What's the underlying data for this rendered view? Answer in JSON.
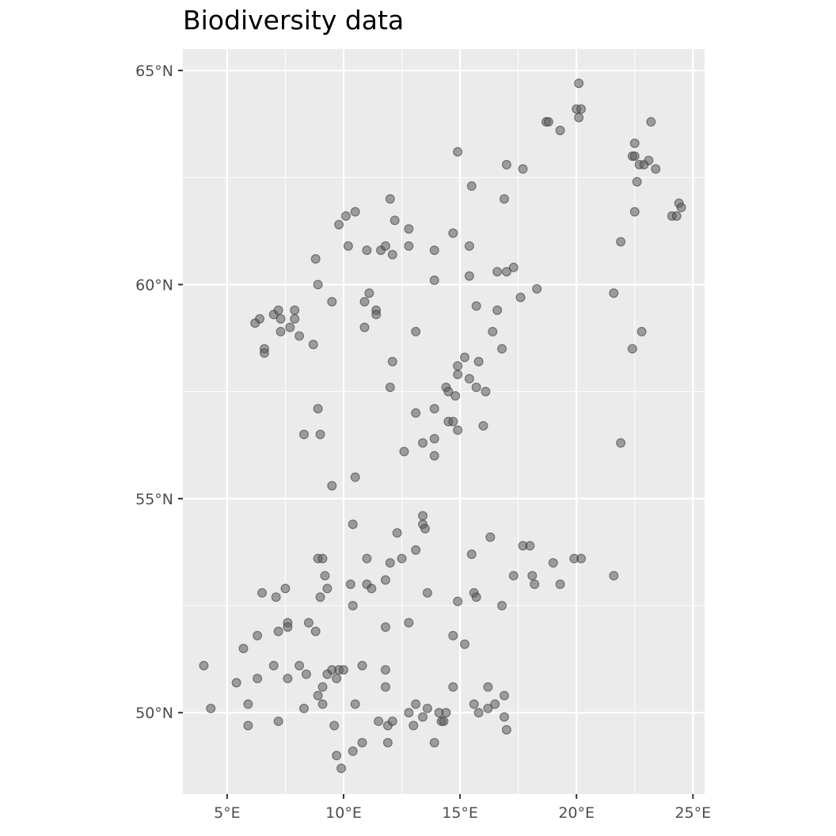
{
  "chart_data": {
    "type": "scatter",
    "title": "Biodiversity data",
    "xlabel": "",
    "ylabel": "",
    "xlim": [
      3.1,
      25.5
    ],
    "ylim": [
      48.1,
      65.5
    ],
    "x_ticks": [
      5,
      10,
      15,
      20,
      25
    ],
    "x_tick_labels": [
      "5°E",
      "10°E",
      "15°E",
      "20°E",
      "25°E"
    ],
    "y_ticks": [
      50,
      55,
      60,
      65
    ],
    "y_tick_labels": [
      "50°N",
      "55°N",
      "60°N",
      "65°N"
    ],
    "grid": true,
    "legend": "none",
    "colors": {
      "panel_background": "#ebebeb",
      "grid": "#ffffff",
      "point_fill": "#595959",
      "point_stroke": "#333333",
      "tick_text": "#4d4d4d",
      "tick_mark": "#333333"
    },
    "point_opacity": 0.55,
    "points": [
      [
        18.7,
        63.8
      ],
      [
        18.8,
        63.8
      ],
      [
        19.3,
        63.6
      ],
      [
        20.0,
        64.1
      ],
      [
        20.2,
        64.1
      ],
      [
        20.1,
        64.7
      ],
      [
        20.1,
        63.9
      ],
      [
        23.2,
        63.8
      ],
      [
        22.5,
        63.3
      ],
      [
        22.4,
        63.0
      ],
      [
        22.5,
        63.0
      ],
      [
        22.7,
        62.8
      ],
      [
        22.9,
        62.8
      ],
      [
        23.1,
        62.9
      ],
      [
        23.4,
        62.7
      ],
      [
        22.6,
        62.4
      ],
      [
        22.5,
        61.7
      ],
      [
        24.1,
        61.6
      ],
      [
        24.3,
        61.6
      ],
      [
        24.4,
        61.9
      ],
      [
        24.5,
        61.8
      ],
      [
        14.9,
        63.1
      ],
      [
        17.0,
        62.8
      ],
      [
        17.7,
        62.7
      ],
      [
        15.5,
        62.3
      ],
      [
        16.9,
        62.0
      ],
      [
        21.9,
        61.0
      ],
      [
        21.6,
        59.8
      ],
      [
        22.8,
        58.9
      ],
      [
        22.4,
        58.5
      ],
      [
        21.9,
        56.3
      ],
      [
        10.1,
        61.6
      ],
      [
        10.5,
        61.7
      ],
      [
        9.8,
        61.4
      ],
      [
        12.0,
        62.0
      ],
      [
        12.2,
        61.5
      ],
      [
        12.8,
        61.3
      ],
      [
        14.7,
        61.2
      ],
      [
        10.2,
        60.9
      ],
      [
        11.0,
        60.8
      ],
      [
        11.6,
        60.8
      ],
      [
        11.8,
        60.9
      ],
      [
        12.1,
        60.7
      ],
      [
        12.8,
        60.9
      ],
      [
        13.9,
        60.8
      ],
      [
        15.4,
        60.9
      ],
      [
        8.8,
        60.6
      ],
      [
        16.6,
        60.3
      ],
      [
        17.0,
        60.3
      ],
      [
        17.3,
        60.4
      ],
      [
        15.4,
        60.2
      ],
      [
        13.9,
        60.1
      ],
      [
        8.9,
        60.0
      ],
      [
        18.3,
        59.9
      ],
      [
        11.1,
        59.8
      ],
      [
        10.9,
        59.6
      ],
      [
        9.5,
        59.6
      ],
      [
        17.6,
        59.7
      ],
      [
        15.7,
        59.5
      ],
      [
        16.6,
        59.4
      ],
      [
        7.0,
        59.3
      ],
      [
        7.2,
        59.4
      ],
      [
        7.9,
        59.4
      ],
      [
        6.4,
        59.2
      ],
      [
        6.2,
        59.1
      ],
      [
        7.3,
        59.2
      ],
      [
        7.9,
        59.2
      ],
      [
        11.4,
        59.4
      ],
      [
        11.4,
        59.3
      ],
      [
        10.9,
        59.0
      ],
      [
        7.7,
        59.0
      ],
      [
        7.3,
        58.9
      ],
      [
        8.1,
        58.8
      ],
      [
        13.1,
        58.9
      ],
      [
        16.4,
        58.9
      ],
      [
        6.6,
        58.5
      ],
      [
        6.6,
        58.4
      ],
      [
        8.7,
        58.6
      ],
      [
        16.8,
        58.5
      ],
      [
        15.2,
        58.3
      ],
      [
        15.8,
        58.2
      ],
      [
        12.1,
        58.2
      ],
      [
        14.9,
        58.1
      ],
      [
        14.9,
        57.9
      ],
      [
        15.4,
        57.8
      ],
      [
        12.0,
        57.6
      ],
      [
        14.4,
        57.6
      ],
      [
        14.5,
        57.5
      ],
      [
        15.7,
        57.6
      ],
      [
        16.1,
        57.5
      ],
      [
        14.8,
        57.4
      ],
      [
        8.9,
        57.1
      ],
      [
        13.1,
        57.0
      ],
      [
        13.9,
        57.1
      ],
      [
        14.5,
        56.8
      ],
      [
        14.7,
        56.8
      ],
      [
        16.0,
        56.7
      ],
      [
        14.9,
        56.6
      ],
      [
        8.3,
        56.5
      ],
      [
        9.0,
        56.5
      ],
      [
        13.9,
        56.4
      ],
      [
        13.4,
        56.3
      ],
      [
        12.6,
        56.1
      ],
      [
        13.9,
        56.0
      ],
      [
        9.5,
        55.3
      ],
      [
        10.5,
        55.5
      ],
      [
        13.4,
        54.6
      ],
      [
        13.4,
        54.4
      ],
      [
        13.5,
        54.3
      ],
      [
        10.4,
        54.4
      ],
      [
        12.3,
        54.2
      ],
      [
        16.3,
        54.1
      ],
      [
        17.7,
        53.9
      ],
      [
        18.0,
        53.9
      ],
      [
        13.1,
        53.8
      ],
      [
        15.5,
        53.7
      ],
      [
        8.9,
        53.6
      ],
      [
        9.1,
        53.6
      ],
      [
        11.0,
        53.6
      ],
      [
        12.5,
        53.6
      ],
      [
        12.0,
        53.5
      ],
      [
        19.9,
        53.6
      ],
      [
        20.2,
        53.6
      ],
      [
        19.0,
        53.5
      ],
      [
        9.2,
        53.2
      ],
      [
        17.3,
        53.2
      ],
      [
        18.1,
        53.2
      ],
      [
        21.6,
        53.2
      ],
      [
        10.3,
        53.0
      ],
      [
        11.0,
        53.0
      ],
      [
        11.2,
        52.9
      ],
      [
        11.8,
        53.1
      ],
      [
        18.2,
        53.0
      ],
      [
        19.3,
        53.0
      ],
      [
        9.3,
        52.9
      ],
      [
        7.5,
        52.9
      ],
      [
        6.5,
        52.8
      ],
      [
        7.1,
        52.7
      ],
      [
        9.0,
        52.7
      ],
      [
        13.6,
        52.8
      ],
      [
        15.6,
        52.8
      ],
      [
        15.7,
        52.7
      ],
      [
        14.9,
        52.6
      ],
      [
        10.4,
        52.5
      ],
      [
        16.8,
        52.5
      ],
      [
        7.6,
        52.1
      ],
      [
        7.6,
        52.0
      ],
      [
        8.5,
        52.1
      ],
      [
        7.2,
        51.9
      ],
      [
        11.8,
        52.0
      ],
      [
        12.8,
        52.1
      ],
      [
        8.8,
        51.9
      ],
      [
        6.3,
        51.8
      ],
      [
        14.7,
        51.8
      ],
      [
        15.2,
        51.6
      ],
      [
        5.7,
        51.5
      ],
      [
        4.0,
        51.1
      ],
      [
        7.0,
        51.1
      ],
      [
        8.1,
        51.1
      ],
      [
        9.5,
        51.0
      ],
      [
        9.8,
        51.0
      ],
      [
        10.0,
        51.0
      ],
      [
        10.8,
        51.1
      ],
      [
        11.8,
        51.0
      ],
      [
        7.6,
        50.8
      ],
      [
        8.4,
        50.9
      ],
      [
        9.3,
        50.9
      ],
      [
        9.7,
        50.8
      ],
      [
        6.3,
        50.8
      ],
      [
        5.4,
        50.7
      ],
      [
        11.8,
        50.6
      ],
      [
        9.1,
        50.6
      ],
      [
        8.9,
        50.4
      ],
      [
        14.7,
        50.6
      ],
      [
        16.2,
        50.6
      ],
      [
        16.9,
        50.4
      ],
      [
        4.3,
        50.1
      ],
      [
        5.9,
        50.2
      ],
      [
        8.3,
        50.1
      ],
      [
        9.1,
        50.2
      ],
      [
        10.5,
        50.2
      ],
      [
        13.1,
        50.2
      ],
      [
        13.6,
        50.1
      ],
      [
        14.1,
        50.0
      ],
      [
        14.4,
        50.0
      ],
      [
        15.6,
        50.2
      ],
      [
        15.8,
        50.0
      ],
      [
        16.2,
        50.1
      ],
      [
        16.5,
        50.2
      ],
      [
        16.9,
        49.9
      ],
      [
        12.8,
        50.0
      ],
      [
        13.4,
        49.9
      ],
      [
        5.9,
        49.7
      ],
      [
        7.2,
        49.8
      ],
      [
        9.6,
        49.7
      ],
      [
        11.5,
        49.8
      ],
      [
        11.9,
        49.7
      ],
      [
        12.1,
        49.8
      ],
      [
        13.0,
        49.7
      ],
      [
        14.2,
        49.8
      ],
      [
        14.3,
        49.8
      ],
      [
        17.0,
        49.6
      ],
      [
        10.8,
        49.3
      ],
      [
        11.9,
        49.3
      ],
      [
        13.9,
        49.3
      ],
      [
        9.7,
        49.0
      ],
      [
        10.4,
        49.1
      ],
      [
        9.9,
        48.7
      ]
    ]
  }
}
